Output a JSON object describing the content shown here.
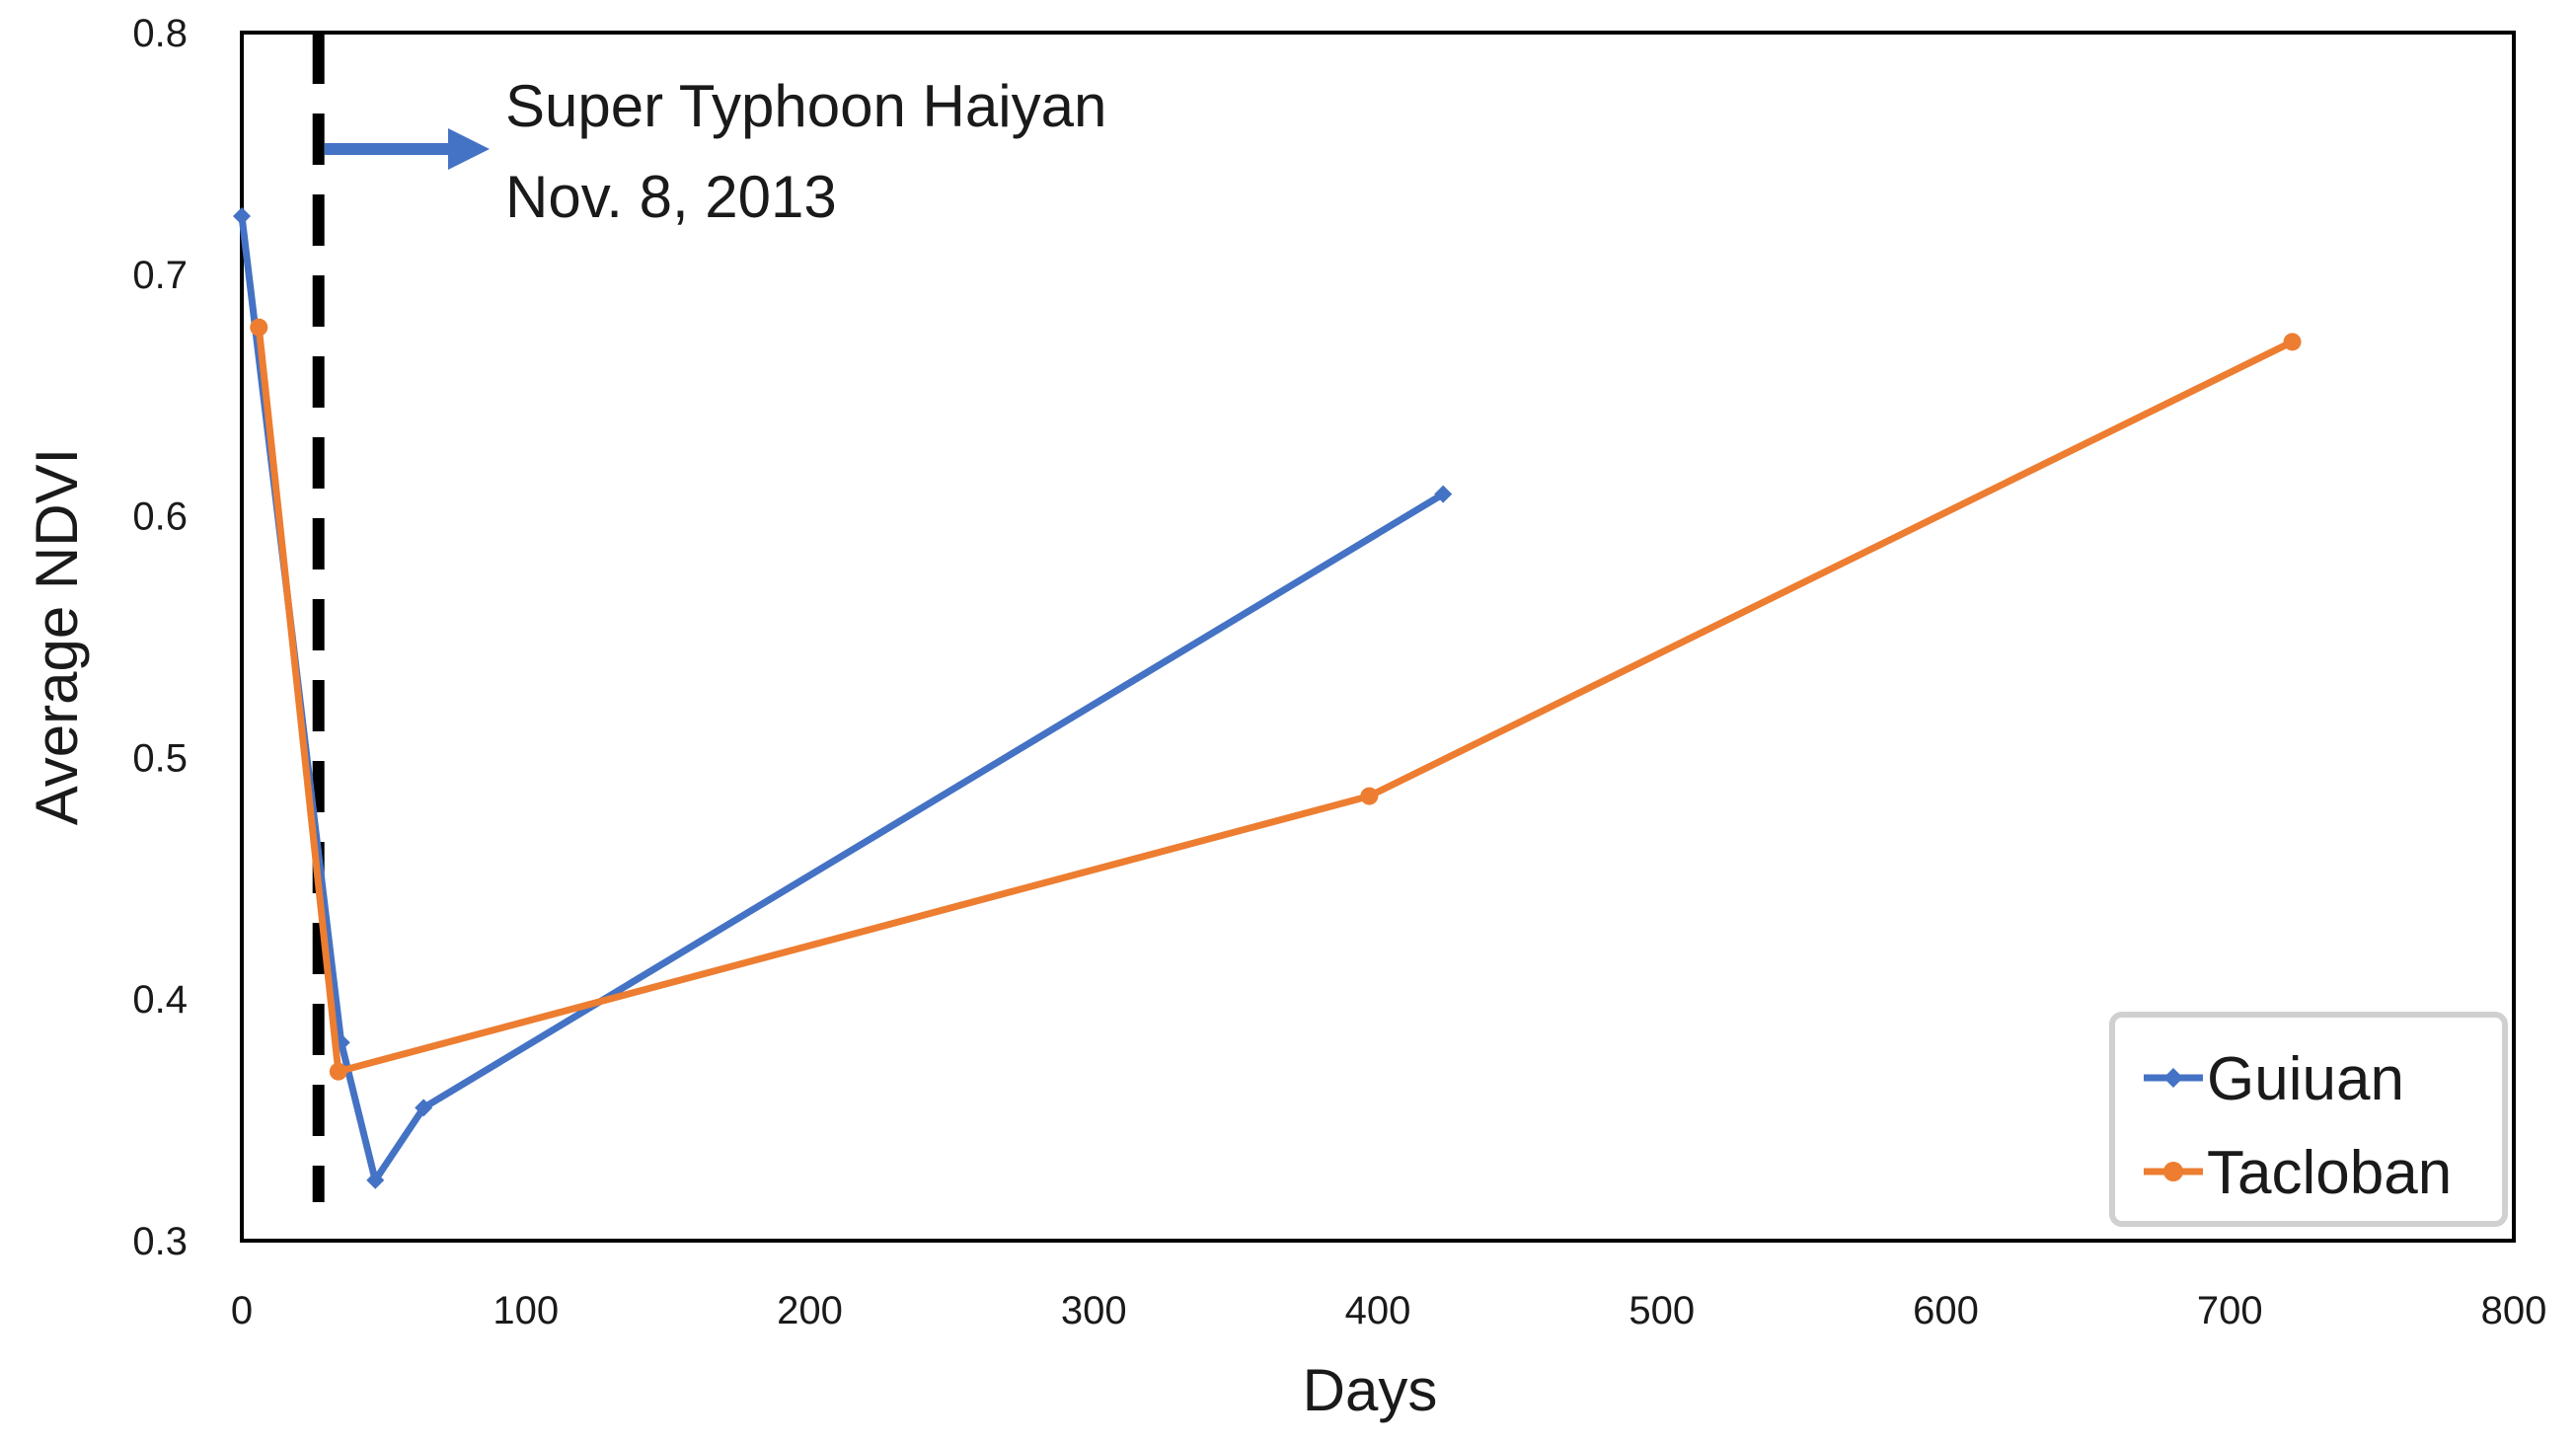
{
  "chart_data": {
    "type": "line",
    "title": "",
    "xlabel": "Days",
    "ylabel": "Average NDVI",
    "xlim": [
      0,
      800
    ],
    "ylim": [
      0.3,
      0.8
    ],
    "x_ticks": [
      0,
      100,
      200,
      300,
      400,
      500,
      600,
      700,
      800
    ],
    "y_ticks": [
      0.3,
      0.4,
      0.5,
      0.6,
      0.7,
      0.8
    ],
    "x_tick_labels": [
      "0",
      "100",
      "200",
      "300",
      "400",
      "500",
      "600",
      "700",
      "800"
    ],
    "y_tick_labels": [
      "0.3",
      "0.4",
      "0.5",
      "0.6",
      "0.7",
      "0.8"
    ],
    "grid": false,
    "legend_position": "bottom-right",
    "series": [
      {
        "name": "Guiuan",
        "color": "#4472C4",
        "marker": "diamond",
        "x": [
          0,
          35,
          47,
          64,
          423
        ],
        "y": [
          0.724,
          0.382,
          0.325,
          0.355,
          0.609
        ]
      },
      {
        "name": "Tacloban",
        "color": "#ED7D31",
        "marker": "circle",
        "x": [
          6,
          34,
          397,
          722
        ],
        "y": [
          0.678,
          0.37,
          0.484,
          0.672
        ]
      }
    ],
    "annotations": {
      "event_line_x": 27,
      "event_line_color": "#000000",
      "event_line_style": "dashed",
      "arrow_color": "#4472C4",
      "text_lines": [
        "Super Typhoon Haiyan",
        "Nov. 8, 2013"
      ]
    }
  }
}
